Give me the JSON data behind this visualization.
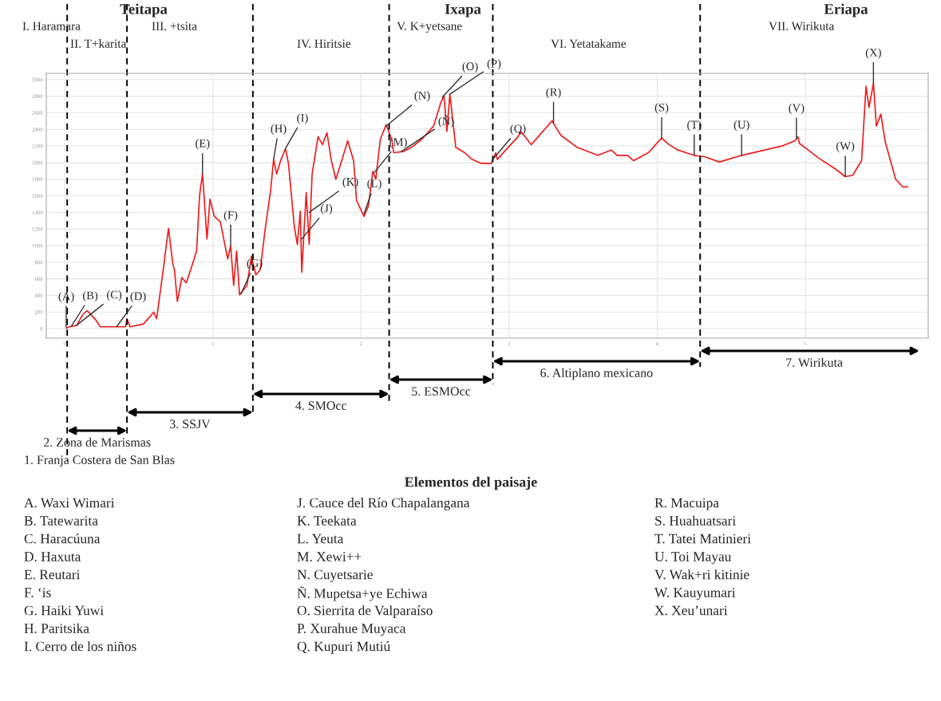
{
  "chart_data": {
    "type": "line",
    "x": [
      0.01,
      0.03,
      0.08,
      0.12,
      0.15,
      0.17,
      0.21,
      0.24,
      0.32,
      0.41,
      0.42,
      0.44,
      0.53,
      0.57,
      0.6,
      0.62,
      0.66,
      0.7,
      0.73,
      0.74,
      0.76,
      0.79,
      0.82,
      0.85,
      0.89,
      0.91,
      0.93,
      0.96,
      0.98,
      1.01,
      1.05,
      1.1,
      1.12,
      1.14,
      1.16,
      1.18,
      1.23,
      1.26,
      1.29,
      1.32,
      1.35,
      1.39,
      1.41,
      1.43,
      1.46,
      1.49,
      1.51,
      1.55,
      1.57,
      1.59,
      1.6,
      1.63,
      1.65,
      1.67,
      1.71,
      1.74,
      1.77,
      1.8,
      1.83,
      1.87,
      1.91,
      1.95,
      1.97,
      2.02,
      2.05,
      2.08,
      2.1,
      2.13,
      2.17,
      2.21,
      2.22,
      2.29,
      2.34,
      2.41,
      2.49,
      2.54,
      2.56,
      2.58,
      2.6,
      2.64,
      2.7,
      2.75,
      2.81,
      2.88,
      2.91,
      2.92,
      3.06,
      3.08,
      3.15,
      3.29,
      3.31,
      3.35,
      3.46,
      3.6,
      3.69,
      3.73,
      3.8,
      3.84,
      3.94,
      4.03,
      4.08,
      4.14,
      4.25,
      4.32,
      4.42,
      4.57,
      4.84,
      4.93,
      4.95,
      4.96,
      5.09,
      5.2,
      5.27,
      5.32,
      5.38,
      5.41,
      5.43,
      5.46,
      5.48,
      5.51,
      5.54,
      5.58,
      5.61,
      5.66,
      5.69
    ],
    "series": [
      {
        "color": "#ee1c1c",
        "values": [
          6,
          22,
          38,
          166,
          215,
          182,
          102,
          22,
          22,
          22,
          118,
          22,
          54,
          134,
          198,
          118,
          647,
          1207,
          775,
          711,
          327,
          615,
          551,
          711,
          935,
          1607,
          1863,
          1079,
          1559,
          1351,
          1287,
          839,
          999,
          519,
          935,
          407,
          519,
          871,
          647,
          711,
          1159,
          1671,
          2039,
          1863,
          2039,
          2167,
          1991,
          1223,
          1015,
          1415,
          679,
          1639,
          1015,
          1863,
          2312,
          2216,
          2360,
          2023,
          1799,
          2023,
          2264,
          2023,
          1543,
          1351,
          1479,
          1895,
          1799,
          2280,
          2456,
          2264,
          2119,
          2135,
          2183,
          2280,
          2440,
          2728,
          2808,
          2376,
          2824,
          2183,
          2119,
          2039,
          1991,
          1991,
          2119,
          2039,
          2312,
          2376,
          2216,
          2504,
          2440,
          2328,
          2183,
          2087,
          2151,
          2087,
          2087,
          2023,
          2119,
          2296,
          2216,
          2151,
          2087,
          2071,
          2007,
          2087,
          2199,
          2264,
          2312,
          2232,
          2055,
          1927,
          1831,
          1847,
          2023,
          2920,
          2664,
          2958,
          2440,
          2584,
          2248,
          1991,
          1799,
          1703,
          1709
        ]
      }
    ],
    "xlim": [
      -0.125,
      5.83
    ],
    "ylim": [
      -115,
      3075
    ],
    "xticks": [
      0,
      1,
      2,
      3,
      4,
      5
    ],
    "yticks": [
      0,
      200,
      400,
      600,
      800,
      1000,
      1200,
      1400,
      1600,
      1800,
      2000,
      2200,
      2400,
      2600,
      2800,
      3000
    ],
    "grid": true,
    "line_style": "solid",
    "marker": "none",
    "legend": false,
    "ref_lines": [
      {
        "axis": "x",
        "value": 0.016,
        "color": "#000000",
        "line_style": "dashed"
      },
      {
        "axis": "x",
        "value": 0.42,
        "color": "#000000",
        "line_style": "dashed"
      },
      {
        "axis": "x",
        "value": 1.27,
        "color": "#000000",
        "line_style": "dashed"
      },
      {
        "axis": "x",
        "value": 2.19,
        "color": "#000000",
        "line_style": "dashed"
      },
      {
        "axis": "x",
        "value": 2.89,
        "color": "#000000",
        "line_style": "dashed"
      },
      {
        "axis": "x",
        "value": 4.29,
        "color": "#000000",
        "line_style": "dashed"
      }
    ],
    "annotations": [
      "Teitapa",
      "Ixapa",
      "Eriapa",
      "I. Haramara",
      "II. T+karita",
      "III. +tsita",
      "IV. Hiritsie",
      "V. K+yetsane",
      "VI. Yetatakame",
      "VII. Wirikuta",
      "2. Zona de Marismas",
      "3. SSJV",
      "4. SMOcc",
      "5. ESMOcc",
      "6. Altiplano mexicano",
      "7. Wirikuta",
      "1. Franja Costera de San Blas",
      "Elementos del paisaje",
      "A. Waxi Wimari",
      "B. Tatewarita",
      "C. Haracúuna",
      "D. Haxuta",
      "E. Reutari",
      "F. ‘is",
      "G. Haiki Yuwi",
      "H. Paritsika",
      "I. Cerro de los niños",
      "J. Cauce del Río Chapalangana",
      "K. Teekata",
      "L. Yeuta",
      "M. Xewi++",
      "N. Cuyetsarie",
      "Ñ. Mupetsa+ye Echiwa",
      "O. Sierrita de Valparaíso",
      "P. Xurahue Muyaca",
      "Q. Kupuri Mutiú",
      "R. Macuipa",
      "S. Huahuatsari",
      "T. Tatei Matinieri",
      "U. Toi Mayau",
      "V. Wak+ri kitinie",
      "W. Kauyumari",
      "X. Xeu’unari",
      {
        "text": "(A)",
        "x": 0.01,
        "y": 20
      },
      {
        "text": "(B)",
        "x": 0.045,
        "y": 30
      },
      {
        "text": "(C)",
        "x": 0.08,
        "y": 40
      },
      {
        "text": "(D)",
        "x": 0.35,
        "y": 22
      },
      {
        "text": "(E)",
        "x": 0.93,
        "y": 1863
      },
      {
        "text": "(F)",
        "x": 1.12,
        "y": 1000
      },
      {
        "text": "(G)",
        "x": 1.19,
        "y": 420
      },
      {
        "text": "(H)",
        "x": 1.41,
        "y": 2040
      },
      {
        "text": "(I)",
        "x": 1.49,
        "y": 2170
      },
      {
        "text": "(J)",
        "x": 1.6,
        "y": 1080
      },
      {
        "text": "(K)",
        "x": 1.65,
        "y": 1400
      },
      {
        "text": "(L)",
        "x": 2.02,
        "y": 1380
      },
      {
        "text": "(M)",
        "x": 2.09,
        "y": 1880
      },
      {
        "text": "(N)",
        "x": 2.17,
        "y": 2440
      },
      {
        "text": "(Ñ)",
        "x": 2.27,
        "y": 2130
      },
      {
        "text": "(O)",
        "x": 2.55,
        "y": 2790
      },
      {
        "text": "(P)",
        "x": 2.6,
        "y": 2824
      },
      {
        "text": "(Q)",
        "x": 2.89,
        "y": 2040
      },
      {
        "text": "(R)",
        "x": 3.3,
        "y": 2480
      },
      {
        "text": "(S)",
        "x": 4.03,
        "y": 2296
      },
      {
        "text": "(T)",
        "x": 4.25,
        "y": 2087
      },
      {
        "text": "(U)",
        "x": 4.57,
        "y": 2087
      },
      {
        "text": "(V)",
        "x": 4.94,
        "y": 2290
      },
      {
        "text": "(W)",
        "x": 5.27,
        "y": 1831
      },
      {
        "text": "(X)",
        "x": 5.46,
        "y": 2958
      }
    ]
  }
}
